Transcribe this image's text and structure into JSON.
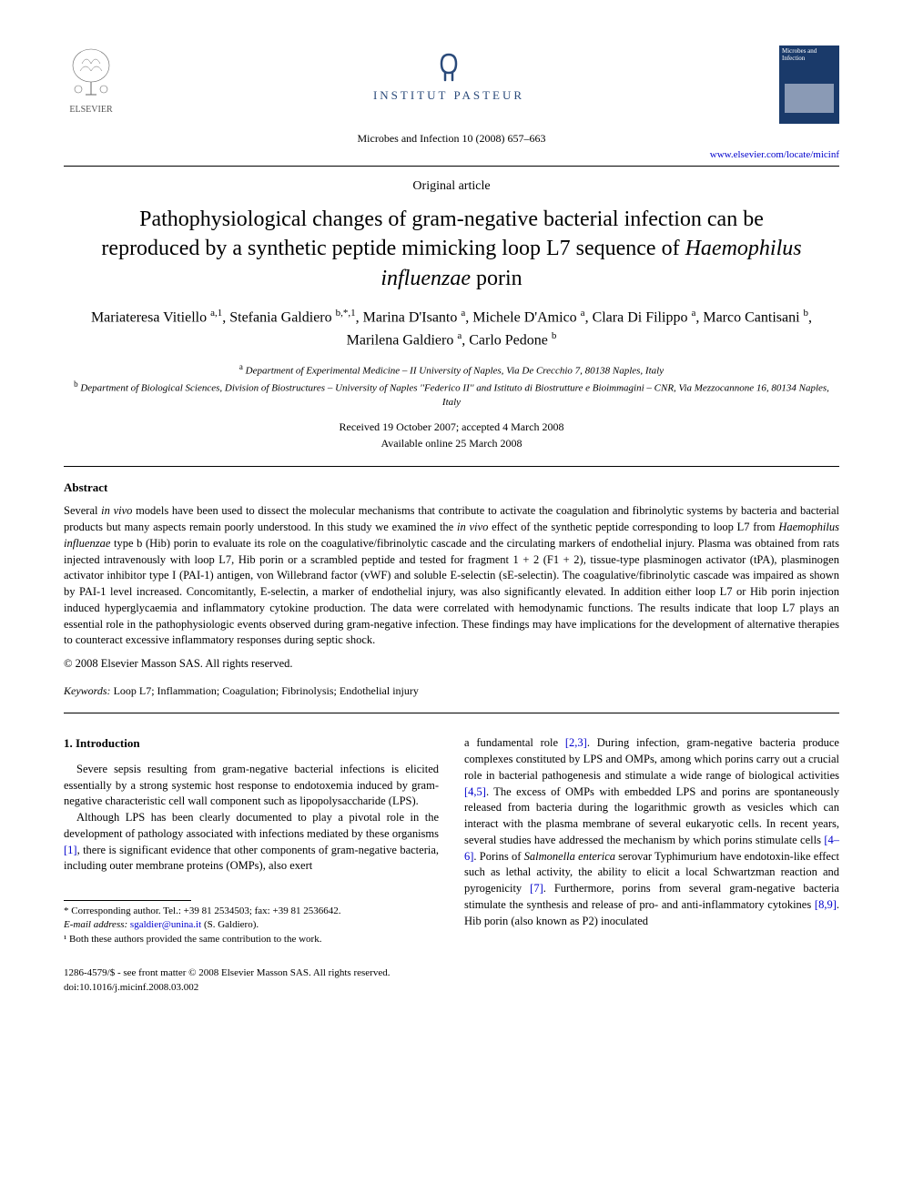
{
  "header": {
    "elsevier_label": "ELSEVIER",
    "pasteur_label": "INSTITUT PASTEUR",
    "journal_ref": "Microbes and Infection 10 (2008) 657–663",
    "journal_url": "www.elsevier.com/locate/micinf",
    "cover_title": "Microbes and Infection"
  },
  "article": {
    "type": "Original article",
    "title_pre": "Pathophysiological changes of gram-negative bacterial infection can be reproduced by a synthetic peptide mimicking loop L7 sequence of ",
    "title_italic": "Haemophilus influenzae",
    "title_post": " porin",
    "authors_html": "Mariateresa Vitiello <sup>a,1</sup>, Stefania Galdiero <sup>b,*,1</sup>, Marina D'Isanto <sup>a</sup>, Michele D'Amico <sup>a</sup>, Clara Di Filippo <sup>a</sup>, Marco Cantisani <sup>b</sup>, Marilena Galdiero <sup>a</sup>, Carlo Pedone <sup>b</sup>",
    "affil_a": "Department of Experimental Medicine – II University of Naples, Via De Crecchio 7, 80138 Naples, Italy",
    "affil_b": "Department of Biological Sciences, Division of Biostructures – University of Naples ''Federico II'' and Istituto di Biostrutture e Bioimmagini – CNR, Via Mezzocannone 16, 80134 Naples, Italy",
    "received": "Received 19 October 2007; accepted 4 March 2008",
    "available": "Available online 25 March 2008"
  },
  "abstract": {
    "heading": "Abstract",
    "text": "Several <em>in vivo</em> models have been used to dissect the molecular mechanisms that contribute to activate the coagulation and fibrinolytic systems by bacteria and bacterial products but many aspects remain poorly understood. In this study we examined the <em>in vivo</em> effect of the synthetic peptide corresponding to loop L7 from <em>Haemophilus influenzae</em> type b (Hib) porin to evaluate its role on the coagulative/fibrinolytic cascade and the circulating markers of endothelial injury. Plasma was obtained from rats injected intravenously with loop L7, Hib porin or a scrambled peptide and tested for fragment 1 + 2 (F1 + 2), tissue-type plasminogen activator (tPA), plasminogen activator inhibitor type I (PAI-1) antigen, von Willebrand factor (vWF) and soluble E-selectin (sE-selectin). The coagulative/fibrinolytic cascade was impaired as shown by PAI-1 level increased. Concomitantly, E-selectin, a marker of endothelial injury, was also significantly elevated. In addition either loop L7 or Hib porin injection induced hyperglycaemia and inflammatory cytokine production. The data were correlated with hemodynamic functions. The results indicate that loop L7 plays an essential role in the pathophysiologic events observed during gram-negative infection. These findings may have implications for the development of alternative therapies to counteract excessive inflammatory responses during septic shock.",
    "copyright": "© 2008 Elsevier Masson SAS. All rights reserved.",
    "keywords_label": "Keywords:",
    "keywords": " Loop L7; Inflammation; Coagulation; Fibrinolysis; Endothelial injury"
  },
  "introduction": {
    "heading": "1. Introduction",
    "p1": "Severe sepsis resulting from gram-negative bacterial infections is elicited essentially by a strong systemic host response to endotoxemia induced by gram-negative characteristic cell wall component such as lipopolysaccharide (LPS).",
    "p2_pre": "Although LPS has been clearly documented to play a pivotal role in the development of pathology associated with infections mediated by these organisms ",
    "p2_ref1": "[1]",
    "p2_post": ", there is significant evidence that other components of gram-negative bacteria, including outer membrane proteins (OMPs), also exert",
    "col2_pre": "a fundamental role ",
    "col2_ref1": "[2,3]",
    "col2_mid1": ". During infection, gram-negative bacteria produce complexes constituted by LPS and OMPs, among which porins carry out a crucial role in bacterial pathogenesis and stimulate a wide range of biological activities ",
    "col2_ref2": "[4,5]",
    "col2_mid2": ". The excess of OMPs with embedded LPS and porins are spontaneously released from bacteria during the logarithmic growth as vesicles which can interact with the plasma membrane of several eukaryotic cells. In recent years, several studies have addressed the mechanism by which porins stimulate cells ",
    "col2_ref3": "[4–6]",
    "col2_mid3": ". Porins of <em>Salmonella enterica</em> serovar Typhimurium have endotoxin-like effect such as lethal activity, the ability to elicit a local Schwartzman reaction and pyrogenicity ",
    "col2_ref4": "[7]",
    "col2_mid4": ". Furthermore, porins from several gram-negative bacteria stimulate the synthesis and release of pro- and anti-inflammatory cytokines ",
    "col2_ref5": "[8,9]",
    "col2_end": ". Hib porin (also known as P2) inoculated"
  },
  "footnotes": {
    "corr": "* Corresponding author. Tel.: +39 81 2534503; fax: +39 81 2536642.",
    "email_label": "E-mail address:",
    "email": "sgaldier@unina.it",
    "email_who": " (S. Galdiero).",
    "equal": "¹ Both these authors provided the same contribution to the work."
  },
  "bottom": {
    "line1": "1286-4579/$ - see front matter © 2008 Elsevier Masson SAS. All rights reserved.",
    "line2": "doi:10.1016/j.micinf.2008.03.002"
  },
  "colors": {
    "link": "#0000cc",
    "pasteur": "#2a4a7a",
    "cover_bg": "#1a3a6a"
  }
}
